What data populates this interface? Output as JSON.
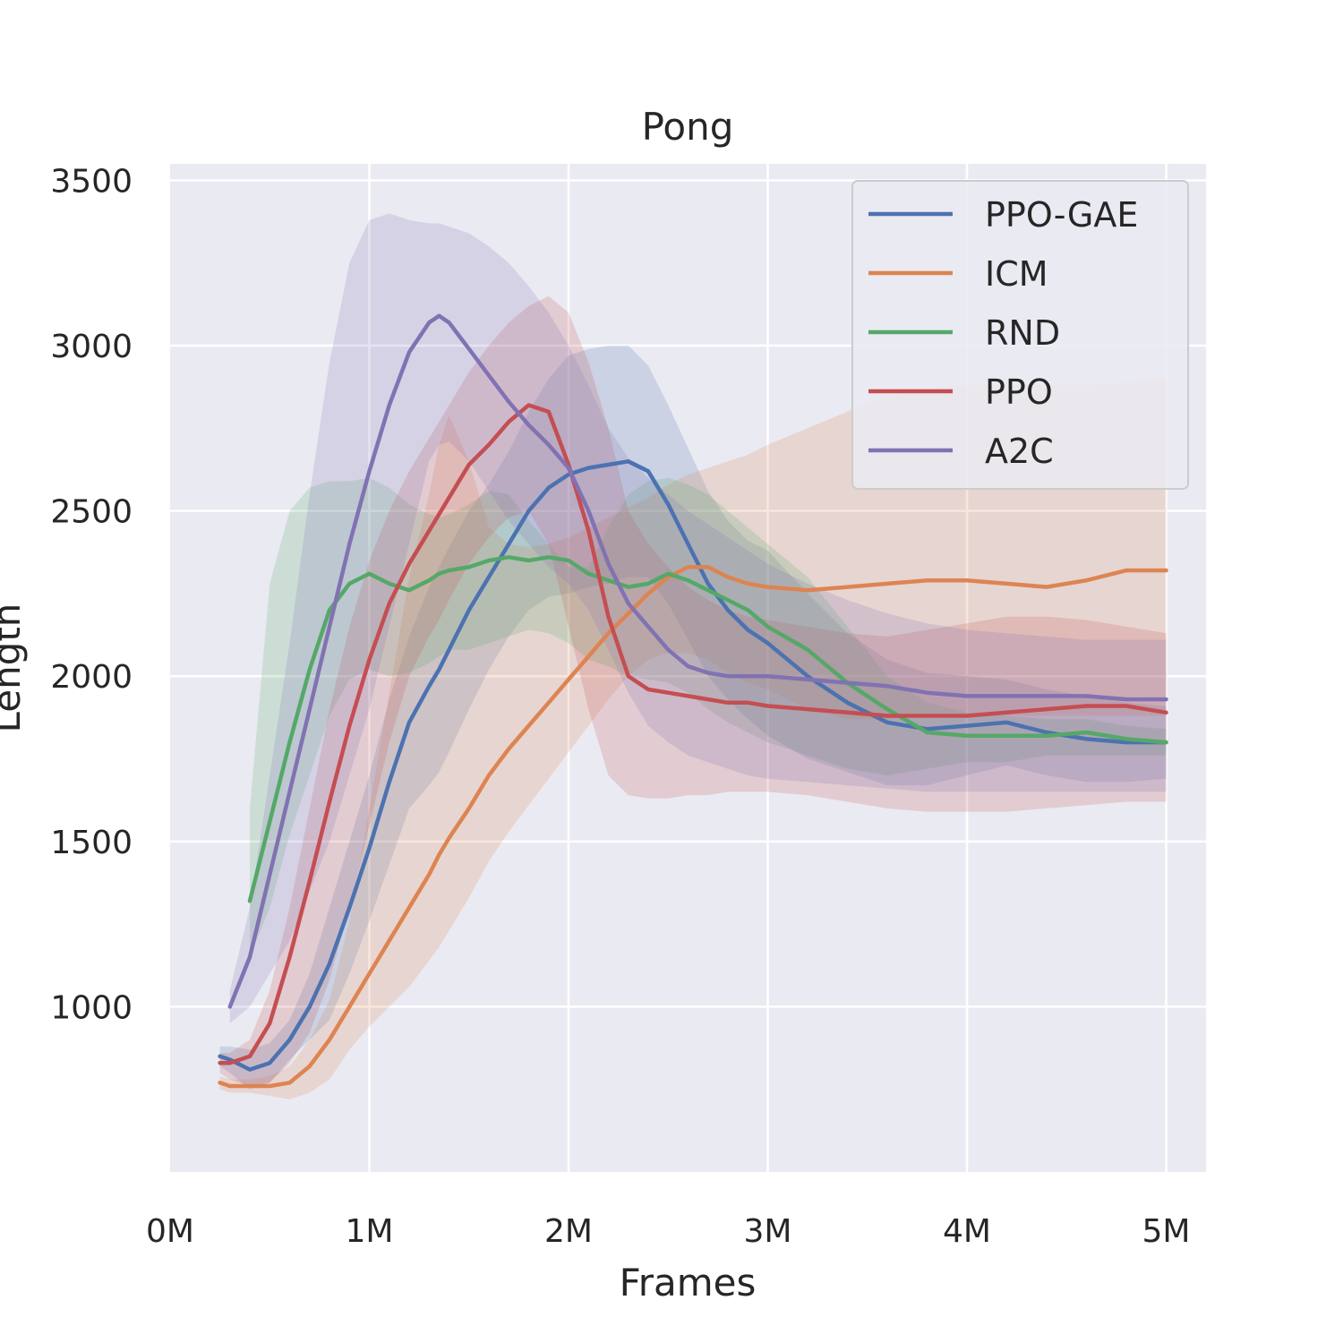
{
  "chart_data": {
    "type": "line",
    "title": "Pong",
    "xlabel": "Frames",
    "ylabel": "Length",
    "xlim": [
      0,
      5200000
    ],
    "ylim": [
      500,
      3550
    ],
    "xticks": [
      0,
      1000000,
      2000000,
      3000000,
      4000000,
      5000000
    ],
    "xtick_labels": [
      "0M",
      "1M",
      "2M",
      "3M",
      "4M",
      "5M"
    ],
    "yticks": [
      1000,
      1500,
      2000,
      2500,
      3000,
      3500
    ],
    "ytick_labels": [
      "1000",
      "1500",
      "2000",
      "2500",
      "3000",
      "3500"
    ],
    "grid": true,
    "legend_position": "top-right",
    "x": [
      250000,
      300000,
      400000,
      500000,
      600000,
      700000,
      800000,
      900000,
      1000000,
      1100000,
      1200000,
      1300000,
      1350000,
      1400000,
      1500000,
      1600000,
      1700000,
      1800000,
      1900000,
      2000000,
      2100000,
      2200000,
      2300000,
      2400000,
      2500000,
      2600000,
      2700000,
      2800000,
      2900000,
      3000000,
      3200000,
      3400000,
      3600000,
      3800000,
      4000000,
      4200000,
      4400000,
      4600000,
      4800000,
      5000000
    ],
    "series": [
      {
        "name": "PPO-GAE",
        "color": "#4c72b0",
        "values": [
          850,
          840,
          810,
          830,
          900,
          1000,
          1130,
          1300,
          1480,
          1680,
          1860,
          1970,
          2020,
          2080,
          2200,
          2300,
          2400,
          2500,
          2570,
          2610,
          2630,
          2640,
          2650,
          2620,
          2520,
          2400,
          2280,
          2200,
          2140,
          2100,
          2000,
          1920,
          1860,
          1840,
          1850,
          1860,
          1830,
          1810,
          1800,
          1800
        ],
        "upper": [
          880,
          880,
          870,
          890,
          960,
          1100,
          1300,
          1500,
          1700,
          1930,
          2120,
          2270,
          2330,
          2390,
          2500,
          2580,
          2680,
          2800,
          2900,
          2970,
          2990,
          3000,
          3000,
          2940,
          2820,
          2690,
          2560,
          2470,
          2410,
          2380,
          2250,
          2130,
          2050,
          2010,
          2000,
          1990,
          1960,
          1940,
          1920,
          1910
        ],
        "lower": [
          820,
          800,
          750,
          770,
          840,
          900,
          960,
          1100,
          1260,
          1430,
          1600,
          1670,
          1710,
          1770,
          1900,
          2020,
          2120,
          2200,
          2240,
          2250,
          2270,
          2280,
          2300,
          2300,
          2220,
          2110,
          2000,
          1930,
          1870,
          1820,
          1750,
          1710,
          1670,
          1670,
          1700,
          1730,
          1700,
          1680,
          1680,
          1690
        ]
      },
      {
        "name": "ICM",
        "color": "#dd8452",
        "values": [
          770,
          760,
          760,
          760,
          770,
          820,
          900,
          1000,
          1100,
          1200,
          1300,
          1400,
          1460,
          1510,
          1600,
          1700,
          1780,
          1850,
          1920,
          1990,
          2060,
          2130,
          2190,
          2250,
          2300,
          2330,
          2330,
          2300,
          2280,
          2270,
          2260,
          2270,
          2280,
          2290,
          2290,
          2280,
          2270,
          2290,
          2320,
          2320
        ],
        "upper": [
          790,
          780,
          780,
          790,
          820,
          900,
          1020,
          1260,
          1600,
          1950,
          2300,
          2550,
          2700,
          2790,
          2650,
          2450,
          2400,
          2390,
          2400,
          2420,
          2450,
          2480,
          2510,
          2540,
          2580,
          2610,
          2630,
          2650,
          2670,
          2700,
          2750,
          2800,
          2850,
          2870,
          2880,
          2880,
          2880,
          2880,
          2890,
          2900
        ],
        "lower": [
          750,
          740,
          740,
          730,
          720,
          740,
          780,
          870,
          940,
          1000,
          1060,
          1140,
          1180,
          1230,
          1330,
          1440,
          1530,
          1610,
          1690,
          1770,
          1850,
          1930,
          2000,
          2050,
          2070,
          2070,
          2050,
          2010,
          1980,
          1960,
          1900,
          1870,
          1870,
          1880,
          1880,
          1880,
          1880,
          1880,
          1880,
          1880
        ]
      },
      {
        "name": "RND",
        "color": "#55a868",
        "values": [
          null,
          null,
          1320,
          1560,
          1800,
          2020,
          2200,
          2280,
          2310,
          2280,
          2260,
          2290,
          2310,
          2320,
          2330,
          2350,
          2360,
          2350,
          2360,
          2350,
          2310,
          2290,
          2270,
          2280,
          2310,
          2290,
          2260,
          2230,
          2200,
          2150,
          2080,
          1980,
          1900,
          1830,
          1820,
          1820,
          1820,
          1830,
          1810,
          1800
        ],
        "upper": [
          null,
          null,
          1600,
          2280,
          2500,
          2570,
          2590,
          2590,
          2600,
          2570,
          2520,
          2490,
          2480,
          2490,
          2520,
          2560,
          2550,
          2470,
          2400,
          2330,
          2330,
          2450,
          2550,
          2590,
          2600,
          2580,
          2550,
          2500,
          2450,
          2400,
          2300,
          2150,
          2000,
          1920,
          1890,
          1880,
          1870,
          1870,
          1850,
          1840
        ],
        "lower": [
          null,
          null,
          1150,
          1300,
          1520,
          1700,
          1880,
          1990,
          2020,
          2000,
          2010,
          2040,
          2060,
          2080,
          2080,
          2100,
          2120,
          2140,
          2130,
          2100,
          2050,
          2030,
          2000,
          1990,
          1980,
          1950,
          1900,
          1860,
          1830,
          1800,
          1760,
          1720,
          1700,
          1720,
          1740,
          1740,
          1760,
          1760,
          1760,
          1760
        ]
      },
      {
        "name": "PPO",
        "color": "#c44e52",
        "values": [
          830,
          830,
          850,
          950,
          1150,
          1380,
          1620,
          1850,
          2050,
          2220,
          2340,
          2440,
          2490,
          2540,
          2640,
          2700,
          2770,
          2820,
          2800,
          2640,
          2440,
          2180,
          2000,
          1960,
          1950,
          1940,
          1930,
          1920,
          1920,
          1910,
          1900,
          1890,
          1880,
          1880,
          1880,
          1890,
          1900,
          1910,
          1910,
          1890
        ],
        "upper": [
          860,
          860,
          900,
          1050,
          1300,
          1600,
          1900,
          2150,
          2350,
          2500,
          2620,
          2720,
          2770,
          2820,
          2920,
          3000,
          3070,
          3120,
          3150,
          3100,
          2950,
          2750,
          2500,
          2400,
          2330,
          2270,
          2230,
          2200,
          2180,
          2170,
          2150,
          2130,
          2120,
          2140,
          2160,
          2180,
          2180,
          2170,
          2150,
          2130
        ],
        "lower": [
          800,
          780,
          760,
          770,
          830,
          920,
          1080,
          1300,
          1550,
          1800,
          2000,
          2120,
          2170,
          2230,
          2340,
          2420,
          2480,
          2500,
          2400,
          2150,
          1900,
          1700,
          1640,
          1630,
          1630,
          1640,
          1640,
          1650,
          1650,
          1650,
          1640,
          1620,
          1600,
          1590,
          1590,
          1590,
          1600,
          1610,
          1620,
          1620
        ]
      },
      {
        "name": "A2C",
        "color": "#8172b2",
        "values": [
          null,
          1000,
          1150,
          1400,
          1650,
          1900,
          2150,
          2400,
          2620,
          2820,
          2980,
          3070,
          3090,
          3070,
          2990,
          2910,
          2830,
          2760,
          2700,
          2630,
          2500,
          2340,
          2220,
          2150,
          2080,
          2030,
          2010,
          2000,
          2000,
          2000,
          1990,
          1980,
          1970,
          1950,
          1940,
          1940,
          1940,
          1940,
          1930,
          1930
        ],
        "upper": [
          null,
          1050,
          1300,
          1700,
          2100,
          2550,
          2950,
          3250,
          3380,
          3400,
          3380,
          3370,
          3370,
          3360,
          3340,
          3300,
          3250,
          3180,
          3100,
          3000,
          2880,
          2750,
          2660,
          2600,
          2550,
          2500,
          2460,
          2420,
          2380,
          2340,
          2280,
          2230,
          2190,
          2160,
          2140,
          2130,
          2120,
          2110,
          2110,
          2110
        ],
        "lower": [
          null,
          950,
          1000,
          1100,
          1200,
          1350,
          1500,
          1700,
          1900,
          2150,
          2400,
          2650,
          2700,
          2710,
          2650,
          2560,
          2470,
          2400,
          2330,
          2280,
          2200,
          2080,
          1950,
          1850,
          1800,
          1760,
          1740,
          1720,
          1700,
          1690,
          1680,
          1670,
          1660,
          1650,
          1650,
          1650,
          1650,
          1650,
          1650,
          1650
        ]
      }
    ]
  }
}
